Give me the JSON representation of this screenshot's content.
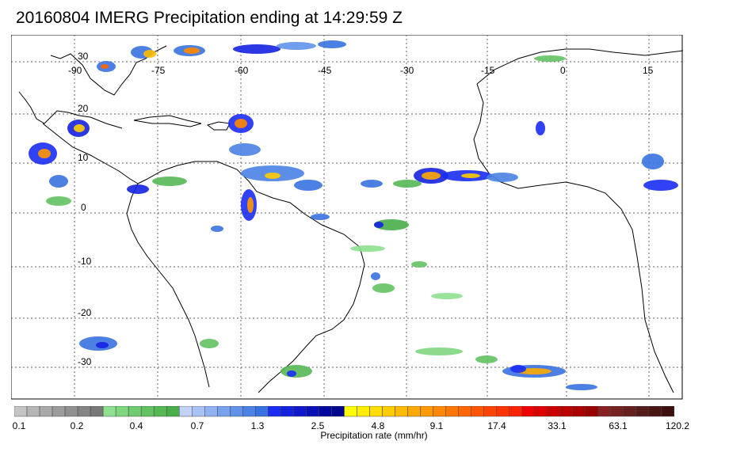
{
  "title": "20160804 IMERG Precipitation ending at 14:29:59 Z",
  "map": {
    "lon_labels": [
      "-90",
      "-75",
      "-60",
      "-45",
      "-30",
      "-15",
      "0",
      "15"
    ],
    "lat_labels": [
      "30",
      "20",
      "10",
      "0",
      "-10",
      "-20",
      "-30"
    ],
    "grid": true,
    "colors": {
      "land_outline": "#000000",
      "grid": "#555555",
      "frame": "#000000"
    }
  },
  "colorbar": {
    "label": "Precipitation rate (mm/hr)",
    "tick_labels": [
      "0.1",
      "0.2",
      "0.4",
      "0.7",
      "1.3",
      "2.5",
      "4.8",
      "9.1",
      "17.4",
      "33.1",
      "63.1",
      "120.2"
    ],
    "colors": [
      "#c4c4c4",
      "#b6b6b6",
      "#a9a9a9",
      "#9c9c9c",
      "#909090",
      "#848484",
      "#787878",
      "#8fe08f",
      "#7fd67f",
      "#70cc70",
      "#62c262",
      "#55b855",
      "#49ad49",
      "#c3d2f5",
      "#a9c2f3",
      "#90b2f1",
      "#78a2ee",
      "#6092ea",
      "#4a82e6",
      "#3872e0",
      "#1a2cf5",
      "#1422e0",
      "#0f18cc",
      "#0a10b8",
      "#0008a0",
      "#000890",
      "#ffff00",
      "#ffee00",
      "#ffdd00",
      "#ffcc00",
      "#ffbb00",
      "#ffaa00",
      "#ff9900",
      "#ff8800",
      "#ff7700",
      "#ff6600",
      "#ff5500",
      "#ff4400",
      "#ff3300",
      "#ff2200",
      "#ee0000",
      "#dd0000",
      "#cc0000",
      "#bb0000",
      "#aa0000",
      "#990000",
      "#882222",
      "#772222",
      "#662020",
      "#551c1c",
      "#4a1515",
      "#3d1010"
    ]
  }
}
